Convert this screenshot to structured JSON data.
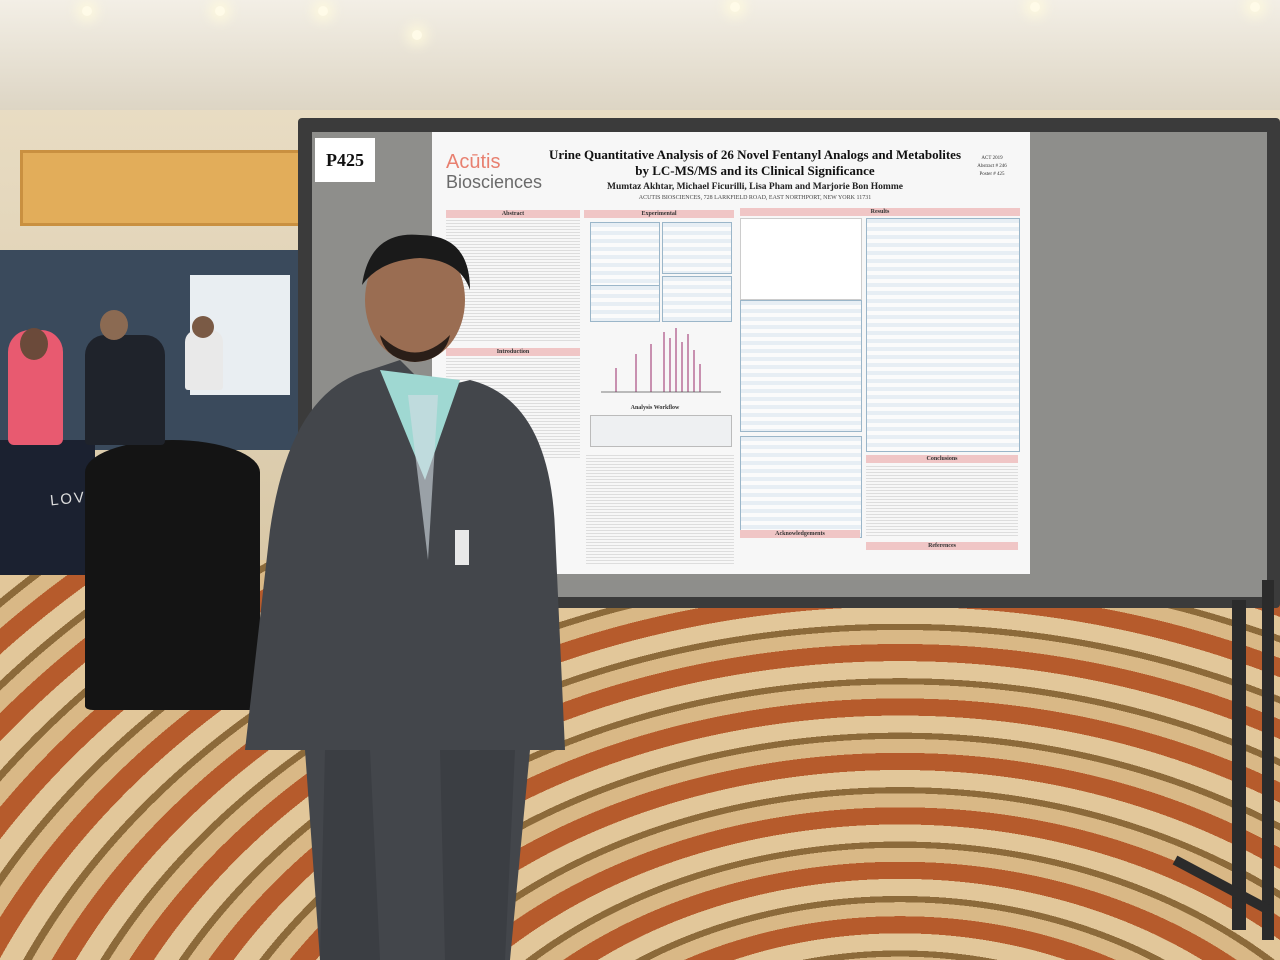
{
  "poster": {
    "tag": "P425",
    "logo_line1": "Acūtis",
    "logo_line2": "Biosciences",
    "title": "Urine Quantitative Analysis of 26 Novel Fentanyl Analogs and Metabolites by LC-MS/MS and its Clinical Significance",
    "authors": "Mumtaz Akhtar, Michael Ficurilli, Lisa Pham and Marjorie Bon Homme",
    "affiliation": "ACUTIS BIOSCIENCES, 728 LARKFIELD ROAD, EAST NORTHPORT, NEW YORK 11731",
    "meta": [
      "ACT 2019",
      "Abstract # 246",
      "Poster # 425"
    ],
    "sections": {
      "abstract": "Abstract",
      "experimental": "Experimental",
      "results": "Results",
      "introduction": "Introduction",
      "conclusions": "Conclusions",
      "acknowledgements": "Acknowledgements",
      "references": "References"
    },
    "workflow_label": "Analysis Workflow"
  },
  "booth": {
    "table_text": "LOVE"
  },
  "colors": {
    "section_header": "#f0c6c6",
    "logo_accent": "#e88070",
    "board_frame": "#3b3b3b",
    "board_fabric": "#8e8e8b"
  }
}
